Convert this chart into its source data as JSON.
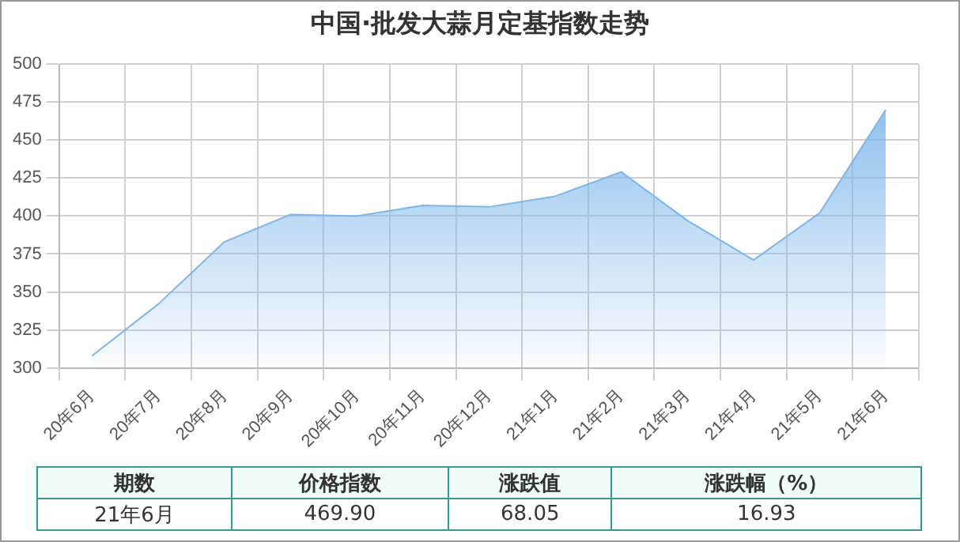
{
  "chart_data": {
    "type": "area",
    "title": "中国·批发大蒜月定基指数走势",
    "categories": [
      "20年6月",
      "20年7月",
      "20年8月",
      "20年9月",
      "20年10月",
      "20年11月",
      "20年12月",
      "21年1月",
      "21年2月",
      "21年3月",
      "21年4月",
      "21年5月",
      "21年6月"
    ],
    "series": [
      {
        "color": "#7eb6ea",
        "values": [
          308,
          342,
          383,
          401,
          400,
          407,
          406,
          413,
          429,
          397,
          371,
          402,
          470
        ]
      }
    ],
    "ylim": [
      300,
      500
    ],
    "yticks": [
      300,
      325,
      350,
      375,
      400,
      425,
      450,
      475,
      500
    ],
    "grid": true,
    "legend": false,
    "marker": "none",
    "annotations": [
      "期数",
      "价格指数",
      "涨跌值",
      "涨跌幅（%）",
      "21年6月",
      "469.90",
      "68.05",
      "16.93"
    ]
  }
}
